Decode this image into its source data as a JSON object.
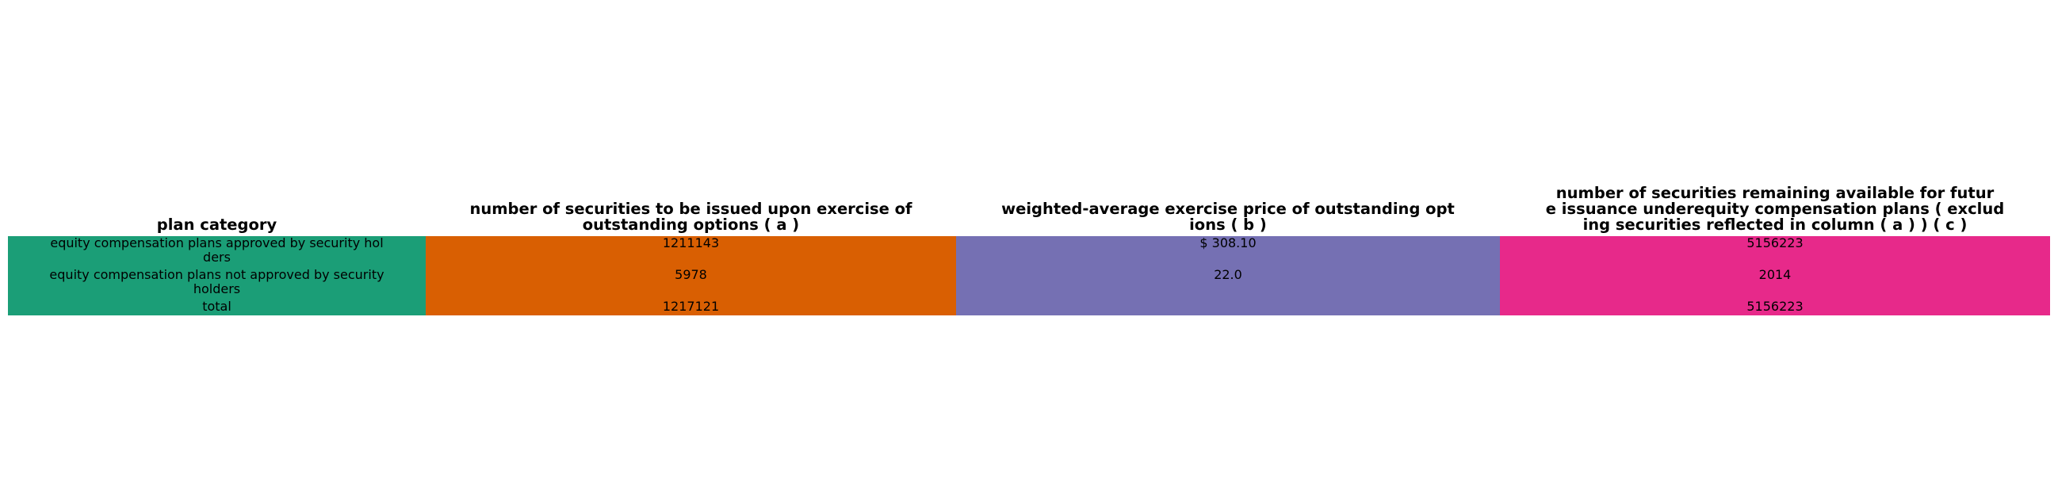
{
  "chart_data": {
    "type": "table",
    "columns": [
      "plan category",
      "number of securities to be issued upon exercise of\noutstanding options ( a )",
      "weighted-average exercise price of outstanding opt\nions ( b )",
      "number of securities remaining available for futur\ne issuance underequity compensation plans ( exclud\ning securities reflected in column ( a ) ) ( c )"
    ],
    "rows": [
      [
        "equity compensation plans approved by security hol\nders",
        "1211143",
        "$ 308.10",
        "5156223"
      ],
      [
        "equity compensation plans not approved by security\nholders",
        "5978",
        "22.0",
        "2014"
      ],
      [
        "total",
        "1217121",
        "",
        "5156223"
      ]
    ],
    "column_colors": [
      "#1b9e77",
      "#d95f02",
      "#7570b3",
      "#e7298a"
    ]
  }
}
